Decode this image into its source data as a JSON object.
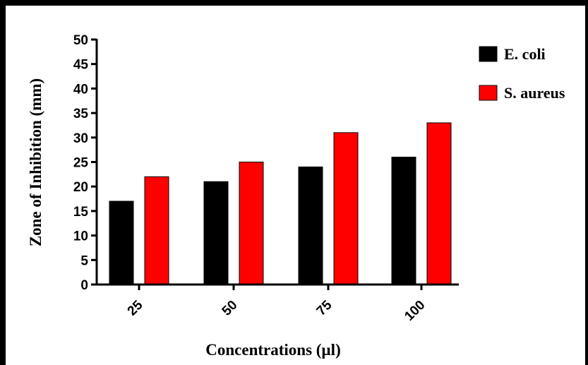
{
  "chart_data": {
    "type": "bar",
    "title": "",
    "xlabel": "Concentrations (µl)",
    "ylabel": "Zone of Inhibition  (mm)",
    "ylim": [
      0,
      50
    ],
    "yticks": [
      "0",
      "5",
      "10",
      "15",
      "20",
      "25",
      "30",
      "35",
      "40",
      "45",
      "50"
    ],
    "categories": [
      "25",
      "50",
      "75",
      "100"
    ],
    "series": [
      {
        "name": "E. coli",
        "color": "#000000",
        "values": [
          17,
          21,
          24,
          26
        ]
      },
      {
        "name": "S. aureus",
        "color": "#ff0000",
        "values": [
          22,
          25,
          31,
          33
        ]
      }
    ],
    "legend": "top-right",
    "grid": false
  }
}
